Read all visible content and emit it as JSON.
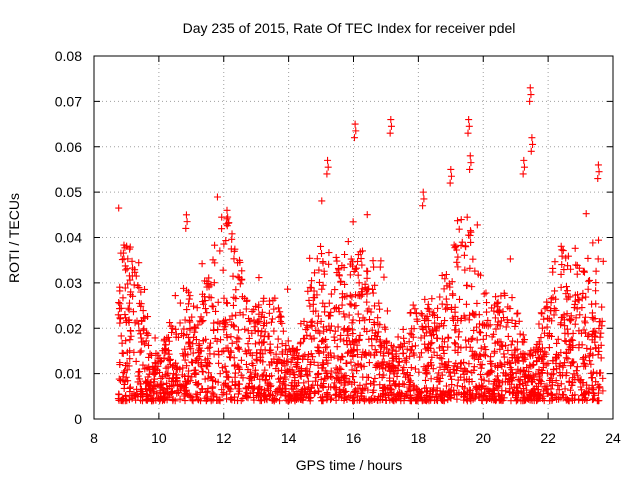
{
  "chart_data": {
    "type": "scatter",
    "title": "Day 235 of 2015, Rate Of TEC Index for receiver pdel",
    "xlabel": "GPS time / hours",
    "ylabel": "ROTI / TECUs",
    "xlim": [
      8,
      24
    ],
    "ylim": [
      0,
      0.08
    ],
    "xticks": [
      "8",
      "10",
      "12",
      "14",
      "16",
      "18",
      "20",
      "22",
      "24"
    ],
    "yticks": [
      "0",
      "0.01",
      "0.02",
      "0.03",
      "0.04",
      "0.05",
      "0.06",
      "0.07",
      "0.08"
    ],
    "grid": true,
    "marker": "plus",
    "color": "#ff0000",
    "data_span_hours": [
      8.75,
      23.7
    ],
    "series": [
      {
        "name": "ROTI",
        "notable_points": [
          {
            "x": 15.2,
            "y": 0.057
          },
          {
            "x": 16.05,
            "y": 0.065
          },
          {
            "x": 17.15,
            "y": 0.066
          },
          {
            "x": 18.15,
            "y": 0.05
          },
          {
            "x": 19.0,
            "y": 0.055
          },
          {
            "x": 19.55,
            "y": 0.066
          },
          {
            "x": 19.6,
            "y": 0.058
          },
          {
            "x": 21.25,
            "y": 0.057
          },
          {
            "x": 21.45,
            "y": 0.073
          },
          {
            "x": 21.5,
            "y": 0.062
          },
          {
            "x": 23.55,
            "y": 0.056
          },
          {
            "x": 12.1,
            "y": 0.046
          },
          {
            "x": 10.85,
            "y": 0.045
          }
        ],
        "typical_range": [
          0.003,
          0.045
        ]
      }
    ]
  }
}
